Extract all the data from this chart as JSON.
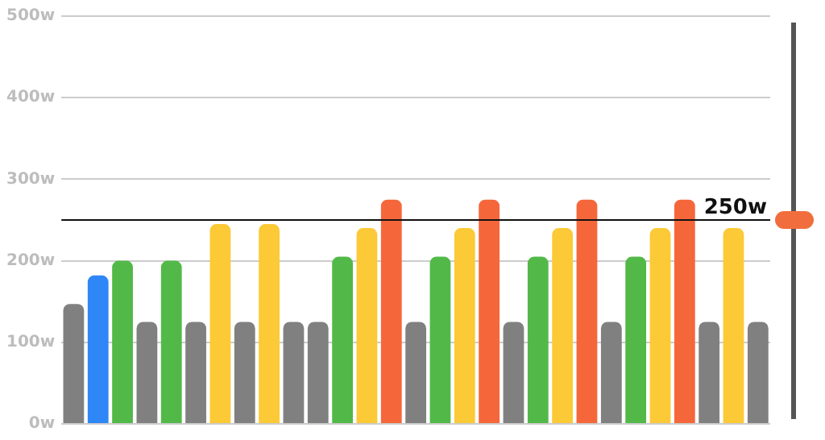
{
  "chart_data": {
    "type": "bar",
    "categories": [
      null,
      null,
      null,
      null,
      null,
      null,
      null,
      null,
      null,
      null,
      null,
      null,
      null,
      null,
      null,
      null,
      null,
      null,
      null,
      null,
      null,
      null,
      null,
      null,
      null,
      null,
      null,
      null,
      null
    ],
    "values": [
      147,
      182,
      200,
      125,
      200,
      125,
      245,
      125,
      245,
      125,
      125,
      205,
      240,
      275,
      125,
      205,
      240,
      275,
      125,
      205,
      240,
      275,
      125,
      205,
      240,
      275,
      125,
      240,
      125
    ],
    "colors": [
      "#808080",
      "#2f86f6",
      "#52b948",
      "#808080",
      "#52b948",
      "#808080",
      "#fcc937",
      "#808080",
      "#fcc937",
      "#808080",
      "#808080",
      "#52b948",
      "#fcc937",
      "#f5673a",
      "#808080",
      "#52b948",
      "#fcc937",
      "#f5673a",
      "#808080",
      "#52b948",
      "#fcc937",
      "#f5673a",
      "#808080",
      "#52b948",
      "#fcc937",
      "#f5673a",
      "#808080",
      "#fcc937",
      "#808080"
    ],
    "ylim": [
      0,
      500
    ],
    "yticks": [
      {
        "value": 0,
        "label": "0w"
      },
      {
        "value": 100,
        "label": "100w"
      },
      {
        "value": 200,
        "label": "200w"
      },
      {
        "value": 300,
        "label": "300w"
      },
      {
        "value": 400,
        "label": "400w"
      },
      {
        "value": 500,
        "label": "500w"
      }
    ],
    "grid": "y",
    "legend": false,
    "tick_labels": "y",
    "ref_lines": [
      {
        "axis": "y",
        "value": 250,
        "label": "250w",
        "color": "#111111"
      }
    ]
  }
}
